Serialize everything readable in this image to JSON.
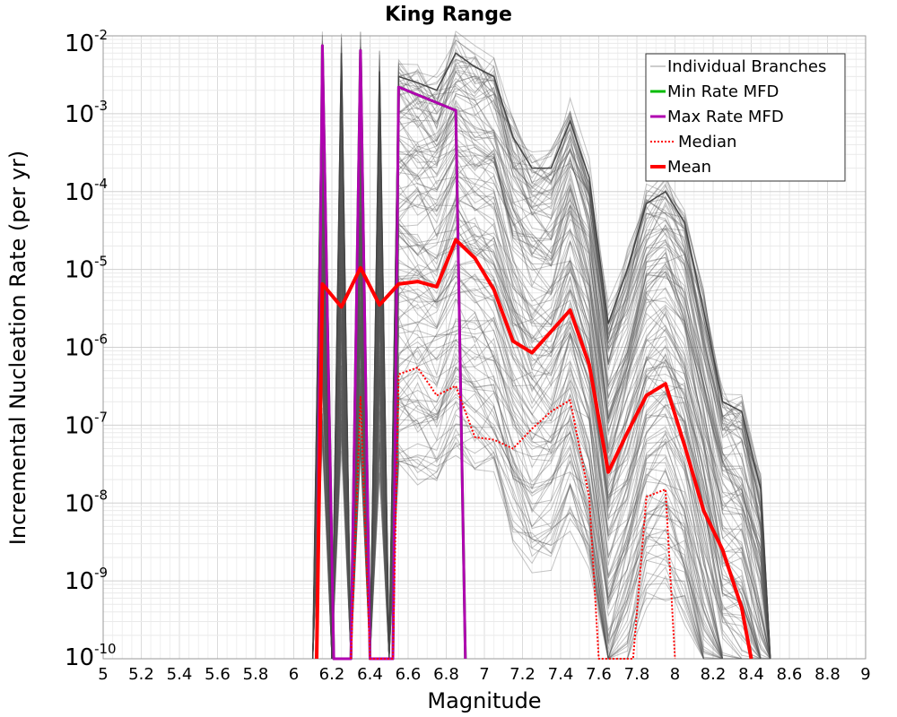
{
  "chart_data": {
    "type": "line",
    "title": "King Range",
    "xlabel": "Magnitude",
    "ylabel": "Incremental Nucleation Rate (per yr)",
    "xlim": [
      5,
      9
    ],
    "ylim": [
      1e-10,
      0.01
    ],
    "yscale": "log",
    "x_ticks": [
      "5",
      "5.2",
      "5.4",
      "5.6",
      "5.8",
      "6",
      "6.2",
      "6.4",
      "6.6",
      "6.8",
      "7",
      "7.2",
      "7.4",
      "7.6",
      "7.8",
      "8",
      "8.2",
      "8.4",
      "8.6",
      "8.8",
      "9"
    ],
    "y_ticks": [
      {
        "base": "10",
        "exp": "-10"
      },
      {
        "base": "10",
        "exp": "-9"
      },
      {
        "base": "10",
        "exp": "-8"
      },
      {
        "base": "10",
        "exp": "-7"
      },
      {
        "base": "10",
        "exp": "-6"
      },
      {
        "base": "10",
        "exp": "-5"
      },
      {
        "base": "10",
        "exp": "-4"
      },
      {
        "base": "10",
        "exp": "-3"
      },
      {
        "base": "10",
        "exp": "-2"
      }
    ],
    "grid": true,
    "legend_position": "top-right",
    "series": [
      {
        "name": "Individual Branches",
        "color": "#555555",
        "style": "solid",
        "envelope_upper": [
          [
            6.1,
            1e-10
          ],
          [
            6.15,
            0.007
          ],
          [
            6.2,
            1e-10
          ],
          [
            6.25,
            0.006
          ],
          [
            6.3,
            1e-10
          ],
          [
            6.35,
            0.006
          ],
          [
            6.4,
            1e-10
          ],
          [
            6.45,
            0.0035
          ],
          [
            6.5,
            1e-10
          ],
          [
            6.55,
            0.003
          ],
          [
            6.65,
            0.0025
          ],
          [
            6.75,
            0.002
          ],
          [
            6.85,
            0.006
          ],
          [
            6.95,
            0.004
          ],
          [
            7.05,
            0.003
          ],
          [
            7.15,
            0.0005
          ],
          [
            7.25,
            0.0002
          ],
          [
            7.35,
            0.0002
          ],
          [
            7.45,
            0.0008
          ],
          [
            7.55,
            0.00015
          ],
          [
            7.65,
            2e-06
          ],
          [
            7.75,
            1e-05
          ],
          [
            7.85,
            7e-05
          ],
          [
            7.95,
            0.0001
          ],
          [
            8.05,
            4e-05
          ],
          [
            8.15,
            3e-06
          ],
          [
            8.25,
            2e-07
          ],
          [
            8.35,
            1.5e-07
          ],
          [
            8.45,
            1.5e-08
          ],
          [
            8.5,
            1e-10
          ]
        ],
        "bundle_count": 140
      },
      {
        "name": "Min Rate MFD",
        "color": "#00bb00",
        "style": "solid",
        "points": [
          [
            6.12,
            1e-10
          ],
          [
            6.15,
            0.0075
          ],
          [
            6.21,
            1e-10
          ],
          [
            6.3,
            1e-10
          ],
          [
            6.35,
            0.0065
          ],
          [
            6.4,
            1e-10
          ],
          [
            6.52,
            1e-10
          ],
          [
            6.55,
            0.0022
          ],
          [
            6.85,
            0.0011
          ],
          [
            6.9,
            1e-10
          ]
        ]
      },
      {
        "name": "Max Rate MFD",
        "color": "#b000b0",
        "style": "solid",
        "points": [
          [
            6.12,
            1e-10
          ],
          [
            6.15,
            0.0075
          ],
          [
            6.21,
            1e-10
          ],
          [
            6.3,
            1e-10
          ],
          [
            6.35,
            0.0065
          ],
          [
            6.4,
            1e-10
          ],
          [
            6.52,
            1e-10
          ],
          [
            6.55,
            0.0022
          ],
          [
            6.85,
            0.0011
          ],
          [
            6.9,
            1e-10
          ]
        ]
      },
      {
        "name": "Median",
        "color": "#ff0000",
        "style": "dotted",
        "points": [
          [
            6.3,
            1e-10
          ],
          [
            6.35,
            2.3e-07
          ],
          [
            6.4,
            1e-10
          ],
          [
            6.52,
            1e-10
          ],
          [
            6.55,
            4.5e-07
          ],
          [
            6.65,
            5.5e-07
          ],
          [
            6.75,
            2.4e-07
          ],
          [
            6.85,
            3.2e-07
          ],
          [
            6.95,
            7e-08
          ],
          [
            7.05,
            6.5e-08
          ],
          [
            7.15,
            5e-08
          ],
          [
            7.25,
            9e-08
          ],
          [
            7.35,
            1.5e-07
          ],
          [
            7.45,
            2.1e-07
          ],
          [
            7.55,
            1.2e-08
          ],
          [
            7.6,
            1e-10
          ],
          [
            7.78,
            1e-10
          ],
          [
            7.85,
            1.2e-08
          ],
          [
            7.95,
            1.5e-08
          ],
          [
            8.0,
            1e-10
          ]
        ]
      },
      {
        "name": "Mean",
        "color": "#ff0000",
        "style": "solid",
        "points": [
          [
            6.12,
            1e-10
          ],
          [
            6.15,
            6.5e-06
          ],
          [
            6.25,
            3.3e-06
          ],
          [
            6.35,
            1.05e-05
          ],
          [
            6.45,
            3.5e-06
          ],
          [
            6.55,
            6.5e-06
          ],
          [
            6.65,
            7e-06
          ],
          [
            6.75,
            6e-06
          ],
          [
            6.85,
            2.4e-05
          ],
          [
            6.95,
            1.4e-05
          ],
          [
            7.05,
            5.5e-06
          ],
          [
            7.15,
            1.2e-06
          ],
          [
            7.25,
            8.5e-07
          ],
          [
            7.35,
            1.6e-06
          ],
          [
            7.45,
            3e-06
          ],
          [
            7.55,
            6e-07
          ],
          [
            7.65,
            2.5e-08
          ],
          [
            7.75,
            8e-08
          ],
          [
            7.85,
            2.4e-07
          ],
          [
            7.95,
            3.4e-07
          ],
          [
            8.05,
            5.5e-08
          ],
          [
            8.15,
            8e-09
          ],
          [
            8.25,
            2.5e-09
          ],
          [
            8.35,
            4.5e-10
          ],
          [
            8.4,
            1e-10
          ]
        ]
      }
    ]
  }
}
